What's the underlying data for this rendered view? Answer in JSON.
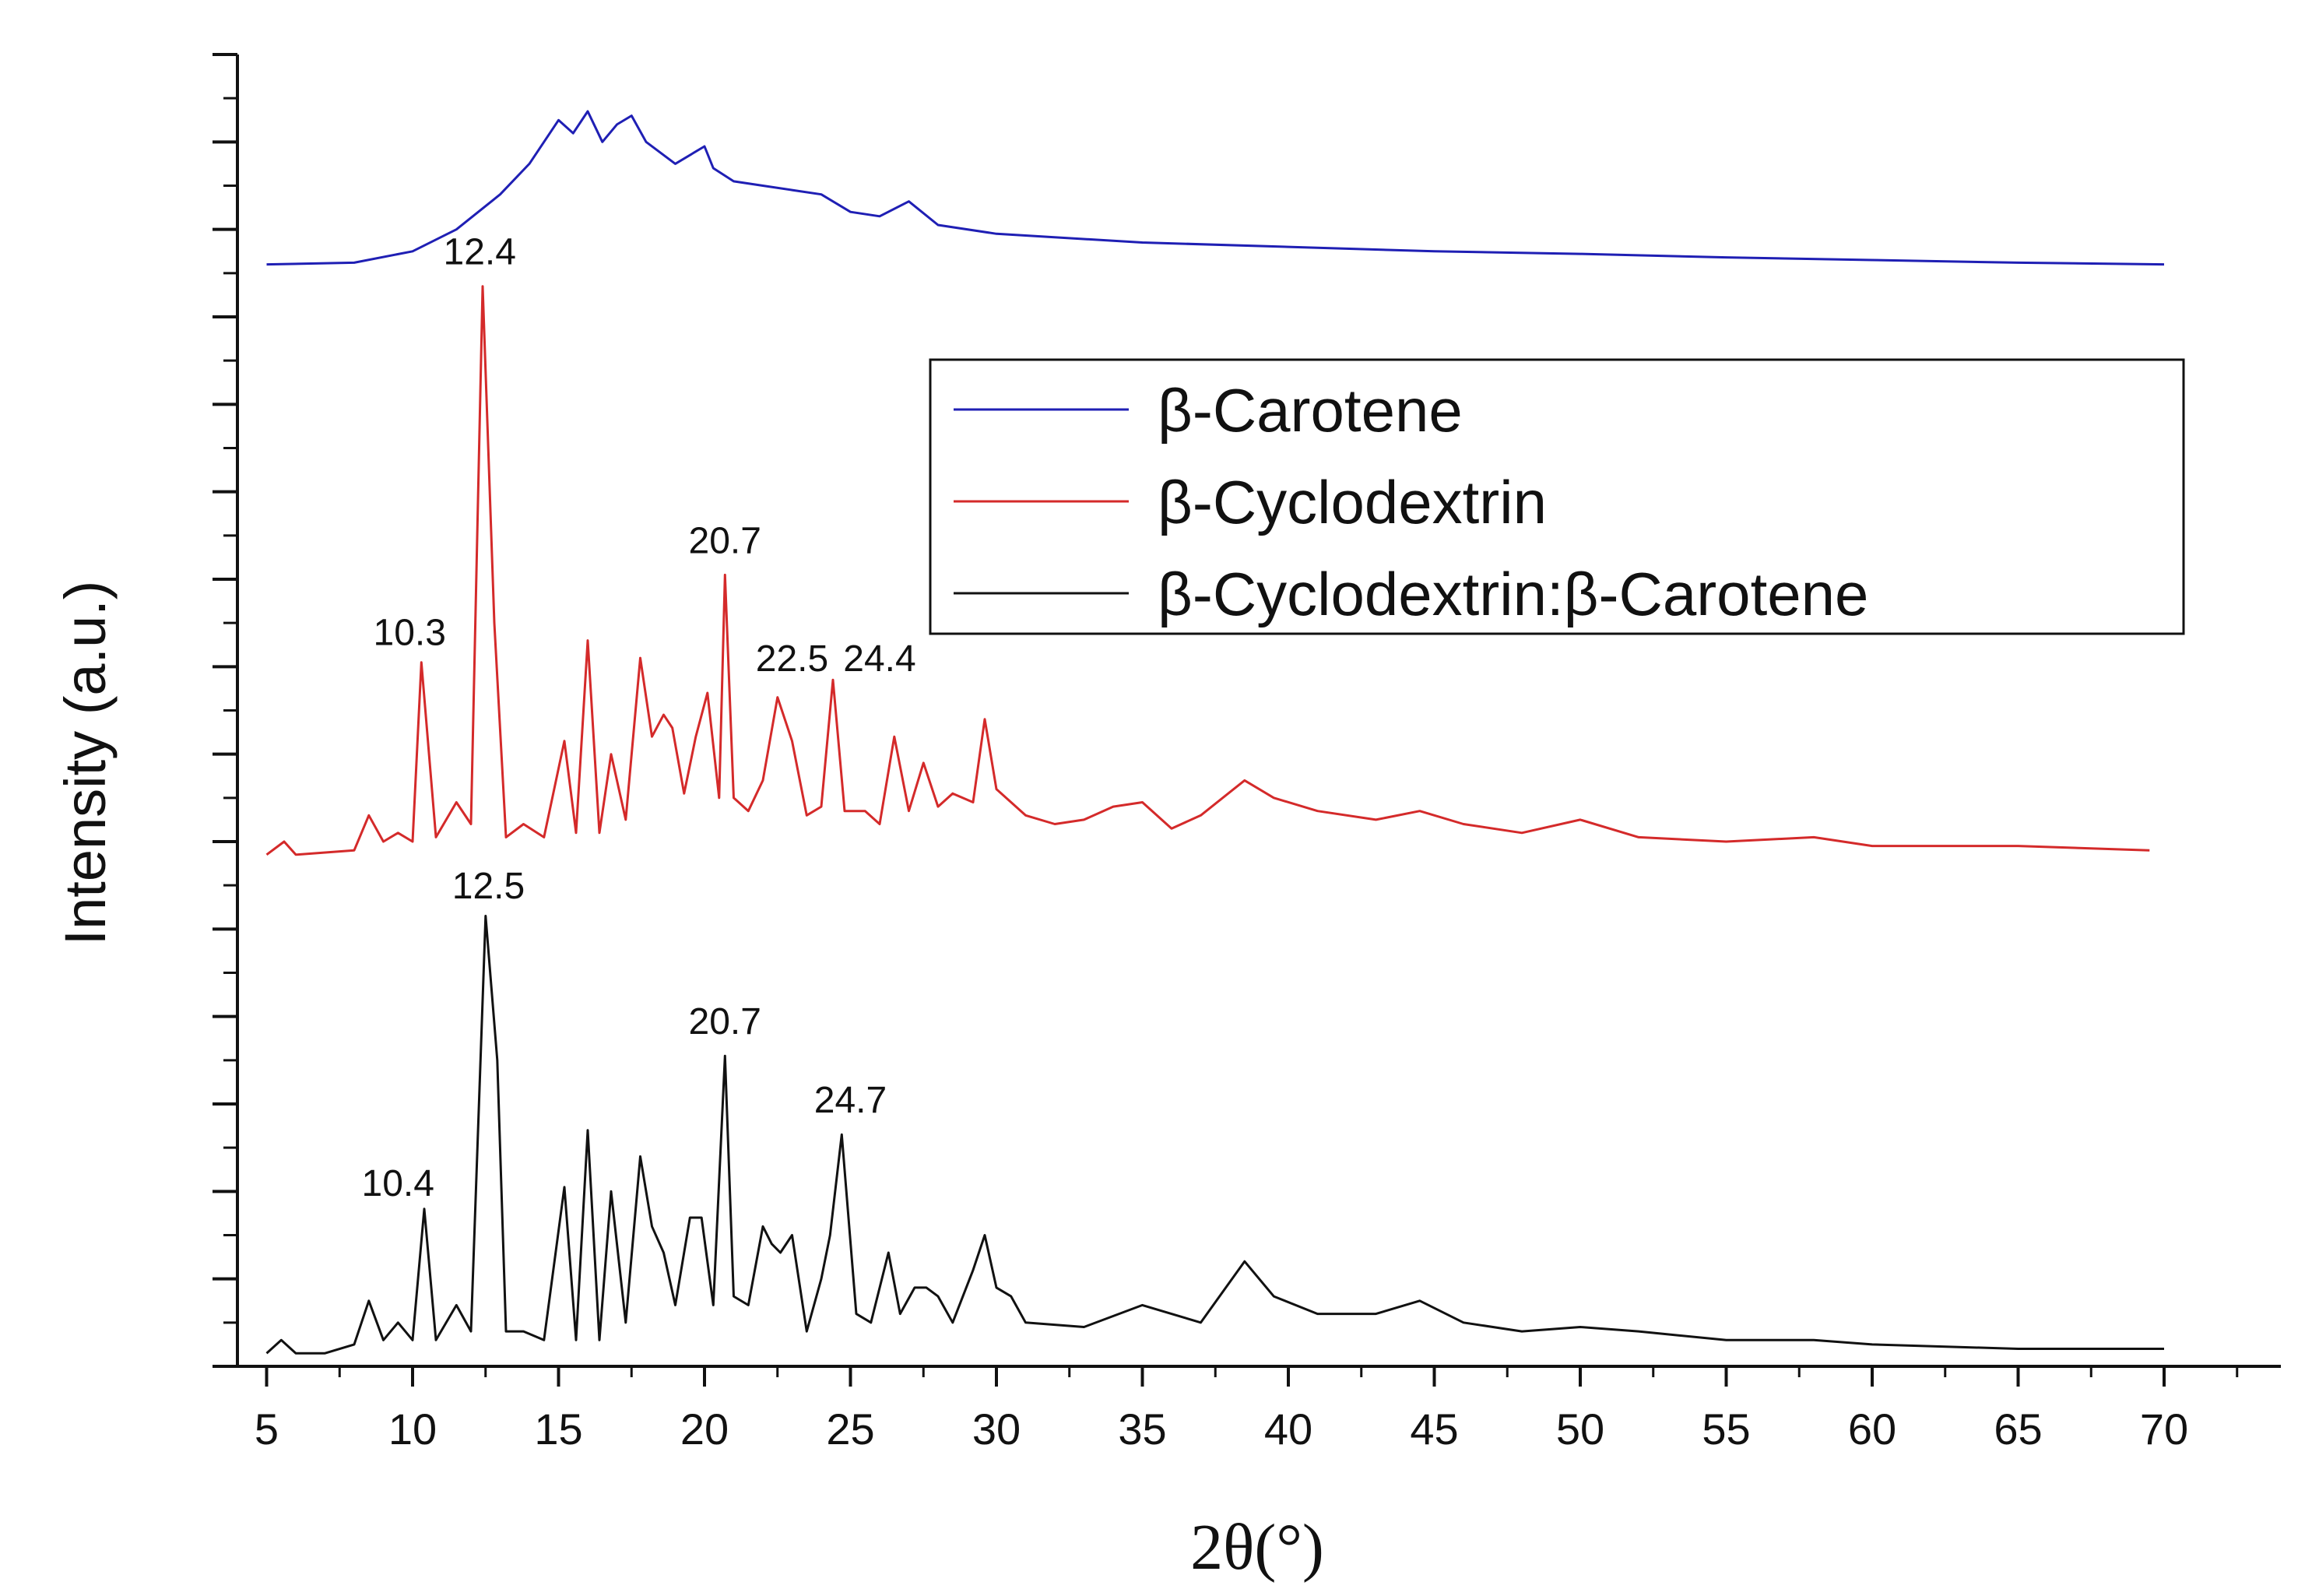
{
  "chart_data": {
    "type": "line",
    "xlabel": "2θ(°)",
    "ylabel": "Intensity (a.u.)",
    "xlim": [
      4,
      74
    ],
    "ylim": [
      0,
      15
    ],
    "x_ticks": [
      "5",
      "10",
      "15",
      "20",
      "25",
      "30",
      "35",
      "40",
      "45",
      "50",
      "55",
      "60",
      "65",
      "70"
    ],
    "y_ticks_labeled": false,
    "grid": false,
    "legend_position": "upper-right",
    "series": [
      {
        "name": "β-Carotene",
        "color": "#1f1fb4",
        "x": [
          5,
          8,
          10,
          11.5,
          13,
          14,
          15,
          15.5,
          16,
          16.5,
          17,
          17.5,
          18,
          19,
          20,
          20.3,
          21,
          22,
          23,
          24,
          25,
          26,
          27,
          28,
          30,
          35,
          40,
          45,
          50,
          55,
          60,
          65,
          70
        ],
        "y": [
          12.6,
          12.62,
          12.75,
          13.0,
          13.4,
          13.75,
          14.25,
          14.1,
          14.35,
          14.0,
          14.2,
          14.3,
          14.0,
          13.75,
          13.95,
          13.7,
          13.55,
          13.5,
          13.45,
          13.4,
          13.2,
          13.15,
          13.32,
          13.05,
          12.95,
          12.85,
          12.8,
          12.75,
          12.72,
          12.68,
          12.65,
          12.62,
          12.6
        ]
      },
      {
        "name": "β-Cyclodextrin",
        "color": "#d42a2a",
        "x": [
          5,
          5.6,
          6,
          8,
          8.5,
          9,
          9.5,
          10,
          10.3,
          10.8,
          11.5,
          12,
          12.4,
          12.8,
          13.2,
          13.8,
          14.5,
          15.2,
          15.6,
          16,
          16.4,
          16.8,
          17.3,
          17.8,
          18.2,
          18.6,
          18.9,
          19.3,
          19.7,
          20.1,
          20.5,
          20.7,
          21,
          21.5,
          22,
          22.5,
          23,
          23.5,
          24,
          24.4,
          24.8,
          25.5,
          26,
          26.5,
          27,
          27.5,
          28,
          28.5,
          29.2,
          29.6,
          30,
          31,
          32,
          33,
          34,
          35,
          36,
          37,
          38.5,
          39.5,
          41,
          43,
          44.5,
          46,
          48,
          50,
          52,
          55,
          58,
          60,
          65,
          69.5
        ],
        "y": [
          5.85,
          6.0,
          5.85,
          5.9,
          6.3,
          6.0,
          6.1,
          6.0,
          8.05,
          6.05,
          6.45,
          6.2,
          12.35,
          8.5,
          6.05,
          6.2,
          6.05,
          7.15,
          6.1,
          8.3,
          6.1,
          7.0,
          6.25,
          8.1,
          7.2,
          7.45,
          7.3,
          6.55,
          7.2,
          7.7,
          6.5,
          9.05,
          6.5,
          6.35,
          6.7,
          7.65,
          7.15,
          6.3,
          6.4,
          7.85,
          6.35,
          6.35,
          6.2,
          7.2,
          6.35,
          6.9,
          6.4,
          6.55,
          6.45,
          7.4,
          6.6,
          6.3,
          6.2,
          6.25,
          6.4,
          6.45,
          6.15,
          6.3,
          6.7,
          6.5,
          6.35,
          6.25,
          6.35,
          6.2,
          6.1,
          6.25,
          6.05,
          6.0,
          6.05,
          5.95,
          5.95,
          5.9
        ]
      },
      {
        "name": "β-Cyclodextrin:β-Carotene",
        "color": "#111111",
        "x": [
          5,
          5.5,
          6,
          7,
          8,
          8.5,
          9,
          9.5,
          10,
          10.4,
          10.8,
          11.5,
          12,
          12.5,
          12.9,
          13.2,
          13.8,
          14.5,
          15.2,
          15.6,
          16,
          16.4,
          16.8,
          17.3,
          17.8,
          18.2,
          18.6,
          19,
          19.5,
          19.9,
          20.3,
          20.7,
          21,
          21.5,
          22,
          22.3,
          22.6,
          23,
          23.5,
          24,
          24.3,
          24.7,
          25.2,
          25.7,
          26.3,
          26.7,
          27.2,
          27.6,
          28,
          28.5,
          29.2,
          29.6,
          30,
          30.5,
          31,
          33,
          35,
          37,
          38.5,
          39.5,
          41,
          43,
          44.5,
          46,
          48,
          50,
          52,
          55,
          58,
          60,
          65,
          70
        ],
        "y": [
          0.15,
          0.3,
          0.15,
          0.15,
          0.25,
          0.75,
          0.3,
          0.5,
          0.3,
          1.8,
          0.3,
          0.7,
          0.4,
          5.15,
          3.5,
          0.4,
          0.4,
          0.3,
          2.05,
          0.3,
          2.7,
          0.3,
          2.0,
          0.5,
          2.4,
          1.6,
          1.3,
          0.7,
          1.7,
          1.7,
          0.7,
          3.55,
          0.8,
          0.7,
          1.6,
          1.4,
          1.3,
          1.5,
          0.4,
          1.0,
          1.5,
          2.65,
          0.6,
          0.5,
          1.3,
          0.6,
          0.9,
          0.9,
          0.8,
          0.5,
          1.1,
          1.5,
          0.9,
          0.8,
          0.5,
          0.45,
          0.7,
          0.5,
          1.2,
          0.8,
          0.6,
          0.6,
          0.75,
          0.5,
          0.4,
          0.45,
          0.4,
          0.3,
          0.3,
          0.25,
          0.2,
          0.2
        ]
      }
    ],
    "annotations": [
      {
        "text": "12.4",
        "x": 12.3,
        "y": 12.6
      },
      {
        "text": "10.3",
        "x": 9.9,
        "y": 8.25
      },
      {
        "text": "20.7",
        "x": 20.7,
        "y": 9.3
      },
      {
        "text": "22.5",
        "x": 23.0,
        "y": 7.95
      },
      {
        "text": "24.4",
        "x": 26.0,
        "y": 7.95
      },
      {
        "text": "12.5",
        "x": 12.6,
        "y": 5.35
      },
      {
        "text": "20.7",
        "x": 20.7,
        "y": 3.8
      },
      {
        "text": "24.7",
        "x": 25.0,
        "y": 2.9
      },
      {
        "text": "10.4",
        "x": 9.5,
        "y": 1.95
      }
    ]
  }
}
